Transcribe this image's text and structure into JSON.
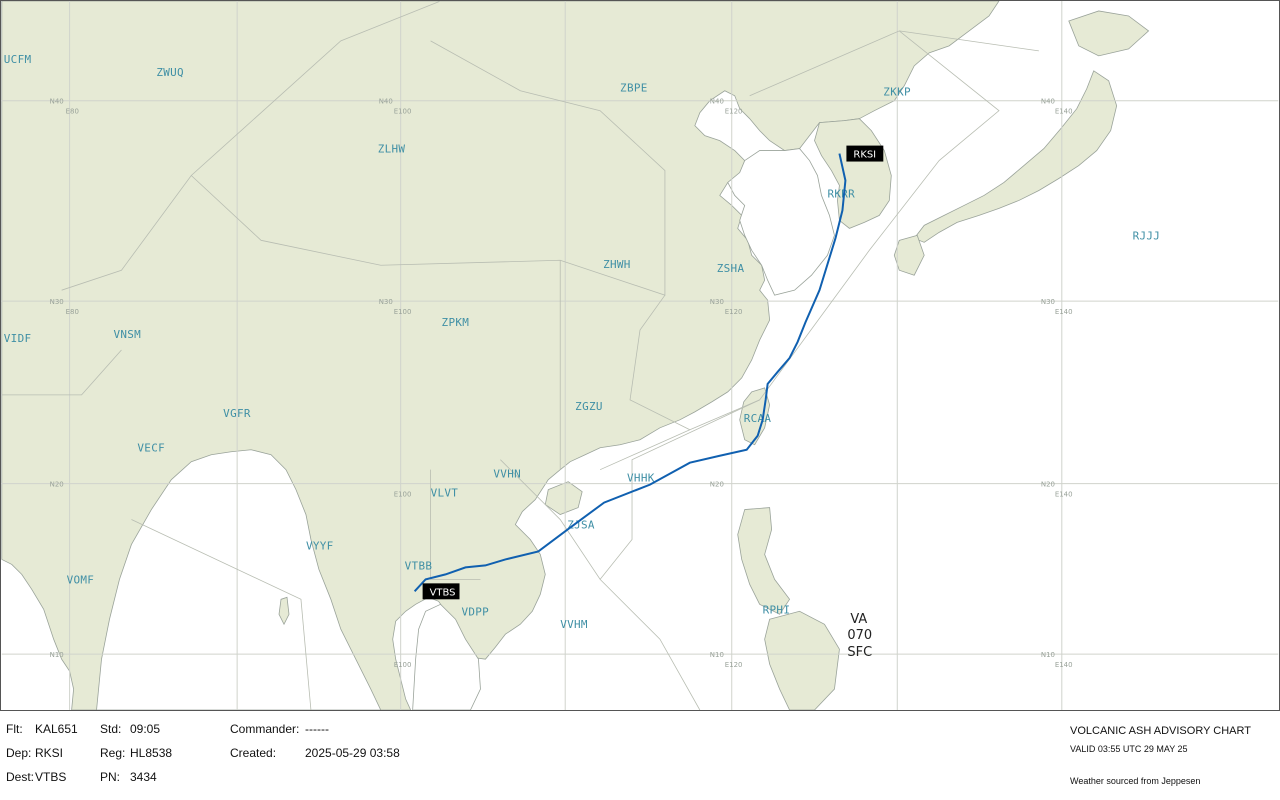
{
  "map": {
    "fir_labels": [
      {
        "id": "UCFM",
        "text": "UCFM"
      },
      {
        "id": "ZWUQ",
        "text": "ZWUQ"
      },
      {
        "id": "ZBPE",
        "text": "ZBPE"
      },
      {
        "id": "ZKKP",
        "text": "ZKKP"
      },
      {
        "id": "ZLHW",
        "text": "ZLHW"
      },
      {
        "id": "RKRR",
        "text": "RKRR"
      },
      {
        "id": "RJJJ",
        "text": "RJJJ"
      },
      {
        "id": "ZHWH",
        "text": "ZHWH"
      },
      {
        "id": "ZSHA",
        "text": "ZSHA"
      },
      {
        "id": "VIDF",
        "text": "VIDF"
      },
      {
        "id": "VNSM",
        "text": "VNSM"
      },
      {
        "id": "ZPKM",
        "text": "ZPKM"
      },
      {
        "id": "VGFR",
        "text": "VGFR"
      },
      {
        "id": "ZGZU",
        "text": "ZGZU"
      },
      {
        "id": "RCAA",
        "text": "RCAA"
      },
      {
        "id": "VECF",
        "text": "VECF"
      },
      {
        "id": "VVHN",
        "text": "VVHN"
      },
      {
        "id": "VHHK",
        "text": "VHHK"
      },
      {
        "id": "VLVT",
        "text": "VLVT"
      },
      {
        "id": "ZJSA",
        "text": "ZJSA"
      },
      {
        "id": "VYYF",
        "text": "VYYF"
      },
      {
        "id": "VTBB",
        "text": "VTBB"
      },
      {
        "id": "VOMF",
        "text": "VOMF"
      },
      {
        "id": "VDPP",
        "text": "VDPP"
      },
      {
        "id": "VVHM",
        "text": "VVHM"
      },
      {
        "id": "RPHI",
        "text": "RPHI"
      }
    ],
    "grid_labels": {
      "n40": "N40",
      "n30": "N30",
      "n20": "N20",
      "n10": "N10",
      "e80": "E80",
      "e100": "E100",
      "e120": "E120",
      "e140": "E140"
    },
    "airports": [
      {
        "id": "RKSI",
        "text": "RKSI"
      },
      {
        "id": "VTBS",
        "text": "VTBS"
      }
    ],
    "va_box": {
      "line1": "VA",
      "line2": "070",
      "line3": "SFC"
    },
    "colors": {
      "land": "#e6ead5",
      "sea": "#ffffff",
      "coast": "#9aa39a",
      "route": "#1060b0",
      "fir_text": "#3f8fa5"
    }
  },
  "footer": {
    "flt_label": "Flt:",
    "flt_value": "KAL651",
    "std_label": "Std:",
    "std_value": "09:05",
    "commander_label": "Commander:",
    "commander_value": "------",
    "dep_label": "Dep:",
    "dep_value": "RKSI",
    "reg_label": "Reg:",
    "reg_value": "HL8538",
    "created_label": "Created:",
    "created_value": "2025-05-29 03:58",
    "dest_label": "Dest:",
    "dest_value": "VTBS",
    "pn_label": "PN:",
    "pn_value": "3434",
    "chart_title": "VOLCANIC ASH ADVISORY CHART",
    "valid": "VALID 03:55 UTC 29 MAY 25",
    "source": "Weather sourced from Jeppesen"
  }
}
